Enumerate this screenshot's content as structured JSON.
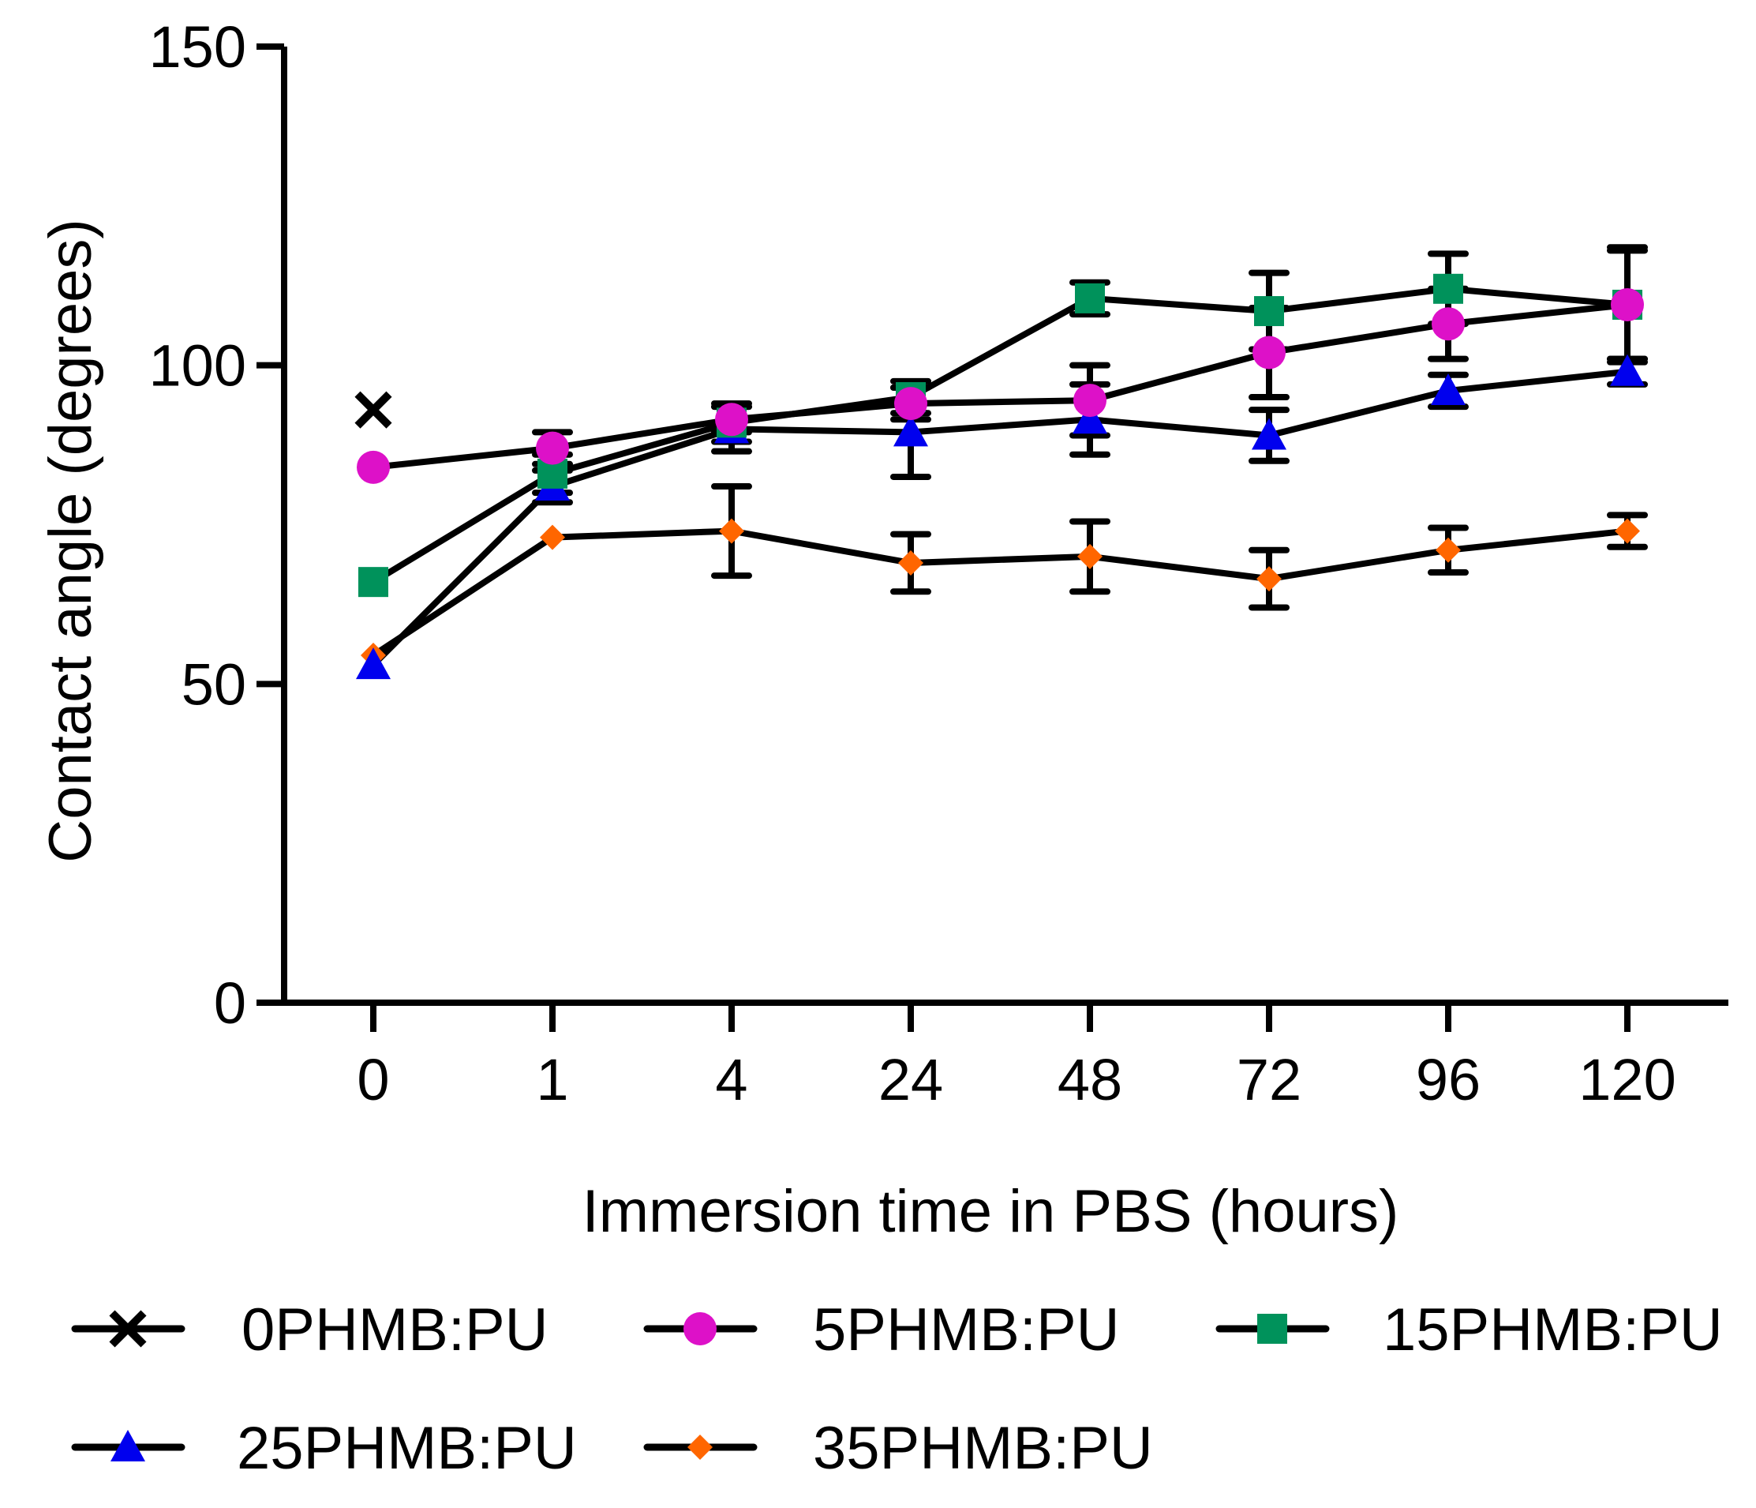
{
  "chart_data": {
    "type": "line",
    "title": "",
    "xlabel": "Immersion time in PBS (hours)",
    "ylabel": "Contact angle (degrees)",
    "categories": [
      "0",
      "1",
      "4",
      "24",
      "48",
      "72",
      "96",
      "120"
    ],
    "ylim": [
      0,
      150
    ],
    "yticks": [
      0,
      50,
      100,
      150
    ],
    "grid": false,
    "legend_position": "bottom",
    "series": [
      {
        "name": "0PHMB:PU",
        "marker": "x",
        "color": "#000000",
        "values": [
          93.0,
          null,
          null,
          null,
          null,
          null,
          null,
          null
        ],
        "errors": [
          0,
          null,
          null,
          null,
          null,
          null,
          null,
          null
        ]
      },
      {
        "name": "5PHMB:PU",
        "marker": "circle",
        "color": "#dd11c8",
        "values": [
          84.0,
          87.0,
          91.5,
          94.0,
          94.5,
          102.0,
          106.5,
          109.5
        ],
        "errors": [
          0,
          2.5,
          2.0,
          2.5,
          5.5,
          7.0,
          5.5,
          8.5
        ]
      },
      {
        "name": "15PHMB:PU",
        "marker": "square",
        "color": "#00925b",
        "values": [
          66.0,
          83.0,
          91.0,
          95.0,
          110.5,
          108.5,
          112.0,
          109.5
        ],
        "errors": [
          0,
          3.0,
          3.0,
          2.5,
          2.5,
          6.0,
          5.5,
          9.0
        ]
      },
      {
        "name": "25PHMB:PU",
        "marker": "triangle",
        "color": "#0000ee",
        "values": [
          53.0,
          81.0,
          90.0,
          89.5,
          91.5,
          89.0,
          96.0,
          99.0
        ],
        "errors": [
          0,
          2.5,
          3.5,
          7.0,
          5.5,
          4.0,
          2.5,
          2.0
        ]
      },
      {
        "name": "35PHMB:PU",
        "marker": "diamond",
        "color": "#ff6600",
        "values": [
          54.5,
          73.0,
          74.0,
          69.0,
          70.0,
          66.5,
          71.0,
          74.0
        ],
        "errors": [
          0,
          0,
          7.0,
          4.5,
          5.5,
          4.5,
          3.5,
          2.5
        ]
      }
    ]
  }
}
